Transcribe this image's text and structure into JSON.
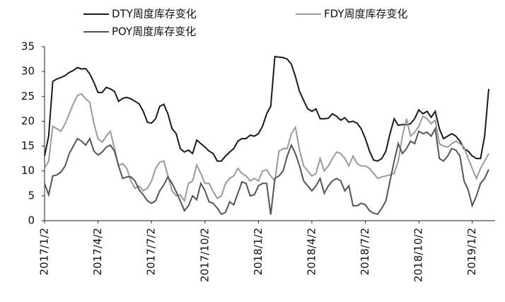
{
  "chart_data": {
    "type": "line",
    "categories": [
      "2017/1/2",
      null,
      null,
      null,
      null,
      null,
      null,
      null,
      null,
      null,
      null,
      null,
      null,
      "2017/4/2",
      null,
      null,
      null,
      null,
      null,
      null,
      null,
      null,
      null,
      null,
      null,
      null,
      "2017/7/2",
      null,
      null,
      null,
      null,
      null,
      null,
      null,
      null,
      null,
      null,
      null,
      null,
      "2017/10/2",
      null,
      null,
      null,
      null,
      null,
      null,
      null,
      null,
      null,
      null,
      null,
      null,
      "2018/1/2",
      null,
      null,
      null,
      null,
      null,
      null,
      null,
      null,
      null,
      null,
      null,
      null,
      "2018/4/2",
      null,
      null,
      null,
      null,
      null,
      null,
      null,
      null,
      null,
      null,
      null,
      null,
      "2018/7/2",
      null,
      null,
      null,
      null,
      null,
      null,
      null,
      null,
      null,
      null,
      null,
      null,
      "2018/10/2",
      null,
      null,
      null,
      null,
      null,
      null,
      null,
      null,
      null,
      null,
      null,
      null,
      "2019/1/2",
      null,
      null,
      null,
      null
    ],
    "series": [
      {
        "name": "DTY周度库存变化",
        "color": "#1a1a1a",
        "values": [
          13,
          17,
          28,
          28.5,
          28.8,
          29.2,
          29.8,
          30.2,
          30.8,
          30.5,
          30.6,
          29.5,
          27.8,
          25.8,
          25.8,
          26.8,
          26.5,
          26,
          24,
          24.6,
          24.8,
          24.5,
          24,
          23.5,
          22,
          19.8,
          19.6,
          20.5,
          23,
          23.4,
          21.5,
          18.5,
          17.5,
          14.5,
          13.8,
          14.2,
          13.5,
          16.2,
          15.5,
          14.8,
          14,
          13.5,
          12,
          12,
          13,
          13.8,
          14.5,
          16,
          16.5,
          16.5,
          17.2,
          17,
          17.5,
          19,
          21.5,
          23,
          33,
          32.9,
          32.8,
          32.5,
          31.5,
          29,
          26,
          24.2,
          22.5,
          22,
          22.5,
          20.5,
          20.5,
          20.6,
          21.5,
          21,
          20.2,
          20.7,
          19.8,
          20,
          19.6,
          18.5,
          16.5,
          14,
          12.2,
          12,
          12.5,
          14,
          17.5,
          20.5,
          19.2,
          19.3,
          19.3,
          19.5,
          20.5,
          22.3,
          21.5,
          22,
          20.8,
          22,
          18.5,
          16.5,
          17,
          17.5,
          17,
          16,
          14.5,
          14,
          13,
          12.5,
          12.5,
          17,
          26.5
        ]
      },
      {
        "name": "FDY周度库存变化",
        "color": "#9a9a9a",
        "values": [
          10.5,
          12,
          19,
          18.5,
          18,
          19.5,
          21.5,
          23.5,
          25.2,
          25.5,
          24.5,
          23.8,
          19.5,
          16.5,
          15.8,
          17,
          18,
          14.5,
          11,
          11.5,
          10.5,
          8,
          6.5,
          7,
          6,
          6.5,
          8,
          10.5,
          11.8,
          12,
          9,
          6,
          5,
          5.2,
          4,
          7.5,
          8,
          11.2,
          9.5,
          7.5,
          7.5,
          5.8,
          4.5,
          5,
          7.5,
          8.5,
          9,
          10.5,
          9.5,
          9,
          8,
          8.5,
          8,
          10,
          10.2,
          9,
          8,
          14,
          14.5,
          14.5,
          17.5,
          18.8,
          14.2,
          11,
          10,
          9,
          9.5,
          12.5,
          10,
          11,
          12.5,
          13.8,
          13.5,
          12.5,
          11,
          13,
          11.5,
          11,
          11,
          10.5,
          9.5,
          8.5,
          8.8,
          9,
          9.2,
          9.5,
          12,
          17,
          20.5,
          17,
          17.8,
          19,
          21,
          20.5,
          19.5,
          20.2,
          15.5,
          15,
          14.8,
          15.5,
          16,
          15.5,
          14.8,
          12.5,
          10.5,
          8.5,
          10.5,
          12,
          13.5
        ]
      },
      {
        "name": "POY周度库存变化",
        "color": "#555555",
        "values": [
          7.5,
          5.2,
          9,
          9.2,
          9.8,
          11,
          13.5,
          15,
          16.5,
          16,
          15.2,
          16.5,
          14,
          13.2,
          13.8,
          14.8,
          15.2,
          14,
          11,
          8.5,
          8.8,
          8.8,
          8,
          6.2,
          5.2,
          4,
          3.5,
          4,
          6,
          7.2,
          8.8,
          7.5,
          5.8,
          4,
          2,
          3,
          5,
          4.2,
          7.5,
          6,
          3.8,
          3.5,
          2.5,
          1.3,
          1.7,
          3.8,
          3.2,
          5.5,
          7.8,
          7.5,
          5,
          5.2,
          7,
          7.5,
          7.5,
          1.2,
          8.5,
          9,
          10,
          13,
          15.2,
          13.5,
          11,
          8,
          7,
          6,
          7,
          8.5,
          5.5,
          7,
          8,
          8.5,
          8,
          6,
          7,
          3,
          3,
          3.5,
          3.2,
          2,
          1.5,
          1.3,
          2.5,
          4,
          8,
          12,
          15.5,
          13.5,
          14.5,
          16,
          15.5,
          18,
          17.5,
          17.8,
          17,
          18.5,
          12.5,
          12,
          13,
          14.5,
          14.2,
          13,
          8,
          6.2,
          3,
          5,
          7.5,
          8.5,
          10.3
        ]
      }
    ],
    "ylim": [
      0,
      35
    ],
    "yticks": [
      0,
      5,
      10,
      15,
      20,
      25,
      30,
      35
    ]
  }
}
